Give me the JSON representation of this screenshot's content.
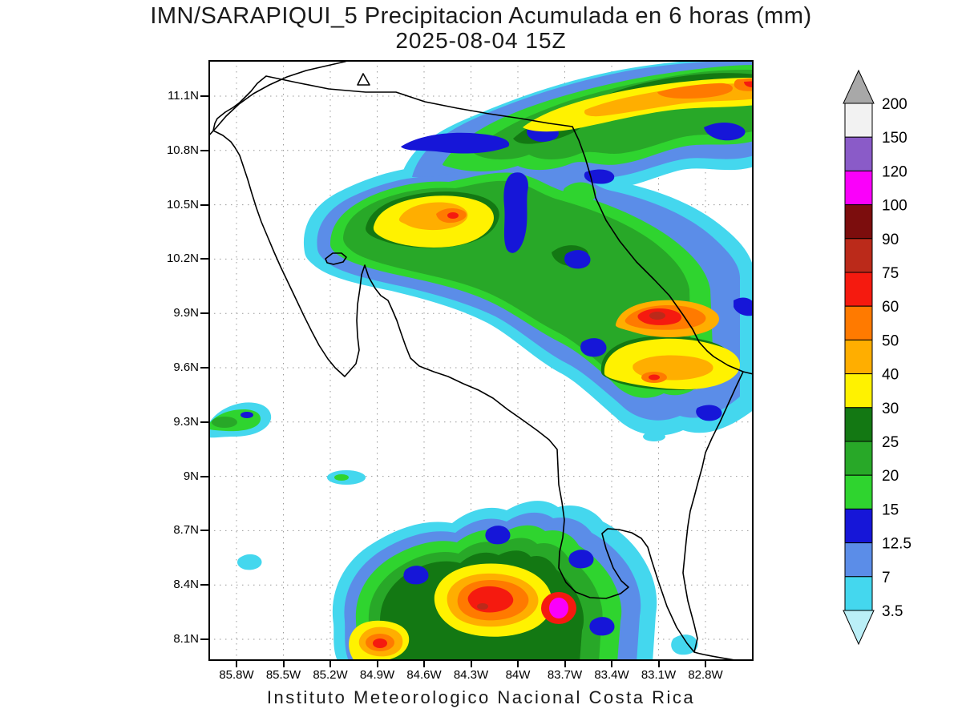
{
  "header": {
    "title": "IMN/SARAPIQUI_5 Precipitacion Acumulada en 6 horas (mm)",
    "datetime": "2025-08-04 15Z"
  },
  "footer": {
    "text": "Instituto Meteorologico Nacional Costa Rica"
  },
  "axes": {
    "lat_labels": [
      "11.1N",
      "10.8N",
      "10.5N",
      "10.2N",
      "9.9N",
      "9.6N",
      "9.3N",
      "9N",
      "8.7N",
      "8.4N",
      "8.1N"
    ],
    "lon_labels": [
      "85.8W",
      "85.5W",
      "85.2W",
      "84.9W",
      "84.6W",
      "84.3W",
      "84W",
      "83.7W",
      "83.4W",
      "83.1W",
      "82.8W"
    ]
  },
  "colorbar": {
    "unit": "mm",
    "boundary_labels": [
      "200",
      "150",
      "120",
      "100",
      "90",
      "75",
      "60",
      "50",
      "40",
      "30",
      "25",
      "20",
      "15",
      "12.5",
      "7",
      "3.5"
    ],
    "segment_colors_top_to_bottom": [
      "#F2F2F2",
      "#8A5BC8",
      "#FA00FA",
      "#7C0D0D",
      "#BB2A1A",
      "#F51A0F",
      "#FF7A00",
      "#FFAE00",
      "#FFF200",
      "#137813",
      "#28A828",
      "#2FD42F",
      "#1616D8",
      "#5B8DE8",
      "#44D7EE"
    ],
    "above_max_color": "#A8A8A8",
    "below_min_color": "#BBEFF7"
  },
  "map": {
    "region": "Costa Rica",
    "variable": "Precipitacion Acumulada en 6 horas",
    "levels_mm": [
      3.5,
      7,
      12.5,
      15,
      20,
      25,
      30,
      40,
      50,
      60,
      75,
      90,
      100,
      120,
      150,
      200
    ]
  }
}
